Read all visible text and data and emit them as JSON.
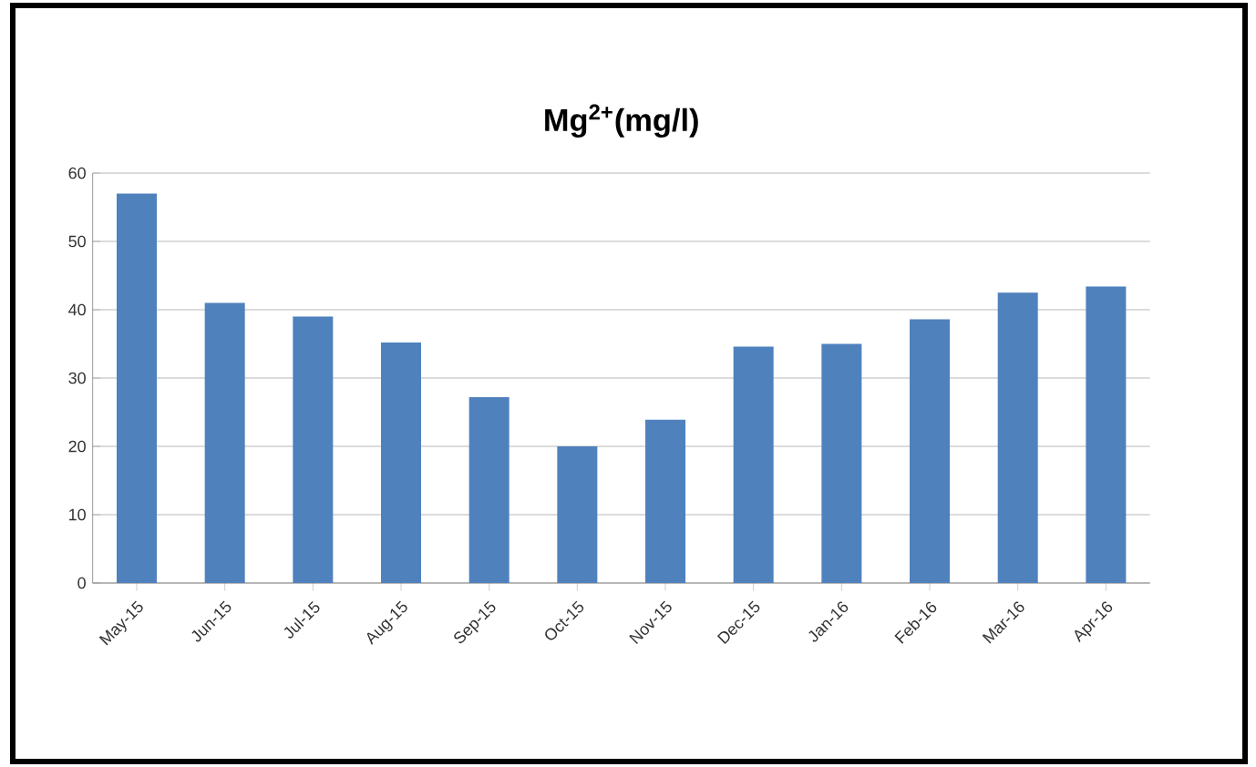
{
  "chart_data": {
    "type": "bar",
    "title": "Mg$^{2+}$(mg/l)",
    "categories": [
      "May-15",
      "Jun-15",
      "Jul-15",
      "Aug-15",
      "Sep-15",
      "Oct-15",
      "Nov-15",
      "Dec-15",
      "Jan-16",
      "Feb-16",
      "Mar-16",
      "Apr-16"
    ],
    "values": [
      57,
      41,
      39,
      35.2,
      27.2,
      20,
      23.9,
      34.6,
      35,
      38.6,
      42.5,
      43.4
    ],
    "color": "#4f81bd",
    "ylim": [
      0,
      60
    ],
    "yticks": [
      0,
      10,
      20,
      30,
      40,
      50,
      60
    ],
    "grid": "y"
  }
}
